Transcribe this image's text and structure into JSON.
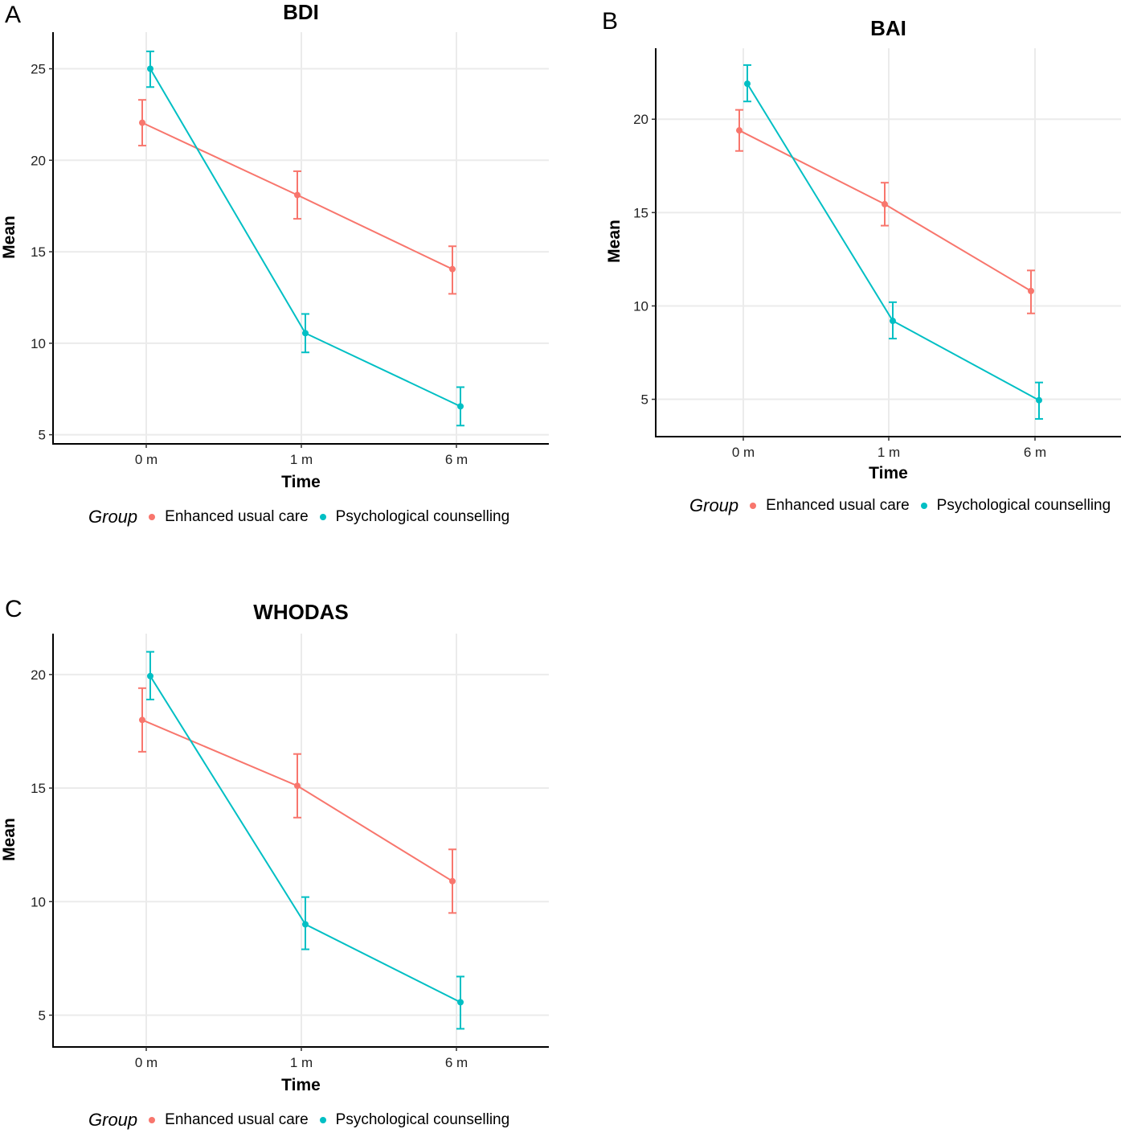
{
  "colors": {
    "enhanced_usual_care": "#F8766D",
    "psychological_counselling": "#00BFC4",
    "grid": "#EBEBEB",
    "axis": "#000000"
  },
  "legend": {
    "title": "Group",
    "items": [
      "Enhanced usual care",
      "Psychological counselling"
    ]
  },
  "chart_data": [
    {
      "panel": "A",
      "type": "line",
      "title": "BDI",
      "xlabel": "Time",
      "ylabel": "Mean",
      "categories": [
        "0 m",
        "1 m",
        "6 m"
      ],
      "yticks": [
        5,
        10,
        15,
        20,
        25
      ],
      "ylim": [
        4.5,
        27.0
      ],
      "grid": true,
      "legend_position": "bottom",
      "series": [
        {
          "name": "Enhanced usual care",
          "values": [
            22.05,
            18.1,
            14.05
          ],
          "lower": [
            20.8,
            16.8,
            12.7
          ],
          "upper": [
            23.3,
            19.4,
            15.3
          ]
        },
        {
          "name": "Psychological counselling",
          "values": [
            25.0,
            10.55,
            6.55
          ],
          "lower": [
            24.0,
            9.5,
            5.5
          ],
          "upper": [
            25.95,
            11.6,
            7.6
          ]
        }
      ]
    },
    {
      "panel": "B",
      "type": "line",
      "title": "BAI",
      "xlabel": "Time",
      "ylabel": "Mean",
      "categories": [
        "0 m",
        "1 m",
        "6 m"
      ],
      "yticks": [
        5,
        10,
        15,
        20
      ],
      "ylim": [
        3.0,
        23.8
      ],
      "grid": true,
      "legend_position": "bottom",
      "series": [
        {
          "name": "Enhanced usual care",
          "values": [
            19.4,
            15.45,
            10.8
          ],
          "lower": [
            18.3,
            14.3,
            9.6
          ],
          "upper": [
            20.5,
            16.6,
            11.9
          ]
        },
        {
          "name": "Psychological counselling",
          "values": [
            21.9,
            9.2,
            4.95
          ],
          "lower": [
            20.95,
            8.25,
            3.95
          ],
          "upper": [
            22.9,
            10.2,
            5.9
          ]
        }
      ]
    },
    {
      "panel": "C",
      "type": "line",
      "title": "WHODAS",
      "xlabel": "Time",
      "ylabel": "Mean",
      "categories": [
        "0 m",
        "1 m",
        "6 m"
      ],
      "yticks": [
        5,
        10,
        15,
        20
      ],
      "ylim": [
        3.6,
        21.8
      ],
      "grid": true,
      "legend_position": "bottom",
      "series": [
        {
          "name": "Enhanced usual care",
          "values": [
            18.0,
            15.1,
            10.9
          ],
          "lower": [
            16.6,
            13.7,
            9.5
          ],
          "upper": [
            19.4,
            16.5,
            12.3
          ]
        },
        {
          "name": "Psychological counselling",
          "values": [
            19.93,
            9.0,
            5.57
          ],
          "lower": [
            18.9,
            7.9,
            4.4
          ],
          "upper": [
            21.0,
            10.2,
            6.7
          ]
        }
      ]
    }
  ]
}
